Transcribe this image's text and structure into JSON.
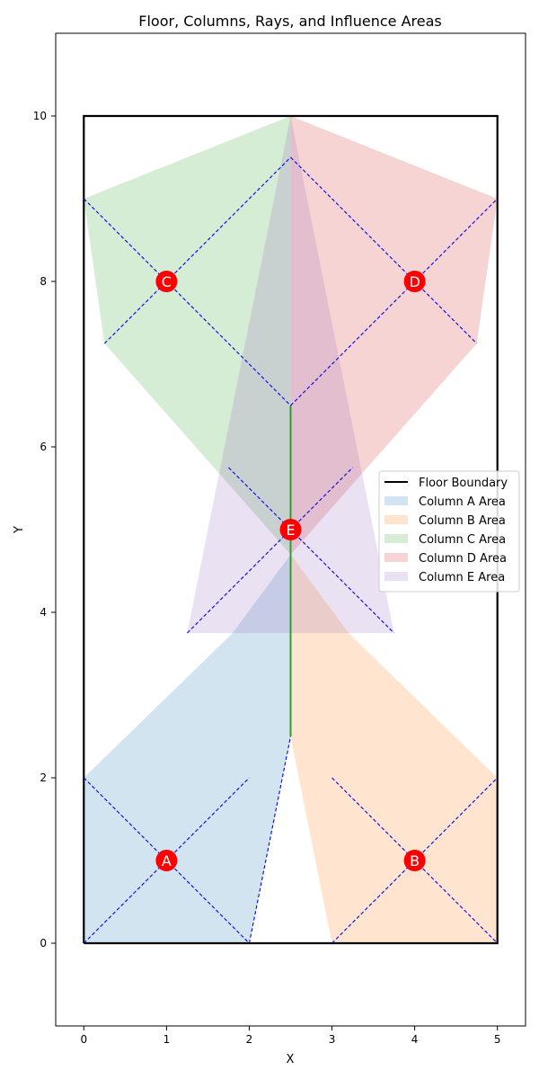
{
  "chart_data": {
    "type": "scatter",
    "title": "Floor, Columns, Rays, and Influence Areas",
    "xlabel": "X",
    "ylabel": "Y",
    "xlim": [
      -0.34,
      5.34
    ],
    "ylim": [
      -1,
      11
    ],
    "xticks": [
      0,
      1,
      2,
      3,
      4,
      5
    ],
    "yticks": [
      0,
      2,
      4,
      6,
      8,
      10
    ],
    "grid": false,
    "legend_position": "right",
    "floor_boundary": {
      "name": "Floor Boundary",
      "color": "#000000",
      "points": [
        [
          0,
          0
        ],
        [
          5,
          0
        ],
        [
          5,
          10
        ],
        [
          0,
          10
        ],
        [
          0,
          0
        ]
      ]
    },
    "columns": [
      {
        "label": "A",
        "x": 1,
        "y": 1
      },
      {
        "label": "B",
        "x": 4,
        "y": 1
      },
      {
        "label": "C",
        "x": 1,
        "y": 8
      },
      {
        "label": "D",
        "x": 4,
        "y": 8
      },
      {
        "label": "E",
        "x": 2.5,
        "y": 5
      }
    ],
    "areas": [
      {
        "name": "Column A Area",
        "color": "#1f77b4",
        "points": [
          [
            0,
            0
          ],
          [
            2,
            0
          ],
          [
            2.5,
            2.5
          ],
          [
            2.5,
            4.7
          ],
          [
            1.8,
            3.75
          ],
          [
            0,
            2
          ]
        ]
      },
      {
        "name": "Column B Area",
        "color": "#ff7f0e",
        "points": [
          [
            3,
            0
          ],
          [
            5,
            0
          ],
          [
            5,
            2
          ],
          [
            3.2,
            3.75
          ],
          [
            2.5,
            4.7
          ],
          [
            2.5,
            2.5
          ]
        ]
      },
      {
        "name": "Column C Area",
        "color": "#2ca02c",
        "points": [
          [
            0,
            9
          ],
          [
            2.5,
            10
          ],
          [
            2.5,
            4.7
          ],
          [
            0.25,
            7.25
          ]
        ]
      },
      {
        "name": "Column D Area",
        "color": "#d62728",
        "points": [
          [
            2.5,
            10
          ],
          [
            5,
            9
          ],
          [
            4.75,
            7.25
          ],
          [
            2.5,
            4.7
          ]
        ]
      },
      {
        "name": "Column E Area",
        "color": "#9467bd",
        "points": [
          [
            2.5,
            10
          ],
          [
            3.75,
            3.75
          ],
          [
            1.25,
            3.75
          ]
        ]
      }
    ],
    "rays": [
      [
        [
          0,
          0
        ],
        [
          2,
          2
        ]
      ],
      [
        [
          0,
          2
        ],
        [
          2,
          0
        ]
      ],
      [
        [
          3,
          0
        ],
        [
          5,
          2
        ]
      ],
      [
        [
          3,
          2
        ],
        [
          5,
          0
        ]
      ],
      [
        [
          0,
          9
        ],
        [
          2.5,
          6.5
        ]
      ],
      [
        [
          0.25,
          7.25
        ],
        [
          2.5,
          9.5
        ]
      ],
      [
        [
          2.5,
          9.5
        ],
        [
          4.75,
          7.25
        ]
      ],
      [
        [
          2.5,
          6.5
        ],
        [
          5,
          9
        ]
      ],
      [
        [
          1.75,
          5.75
        ],
        [
          3.75,
          3.75
        ]
      ],
      [
        [
          1.25,
          3.75
        ],
        [
          3.25,
          5.75
        ]
      ],
      [
        [
          2,
          0
        ],
        [
          2.5,
          2.5
        ]
      ]
    ],
    "divider": {
      "color": "#2ca02c",
      "points": [
        [
          2.5,
          2.5
        ],
        [
          2.5,
          6.5
        ]
      ]
    },
    "legend": [
      {
        "label": "Floor Boundary",
        "kind": "line",
        "color": "#000000"
      },
      {
        "label": "Column A Area",
        "kind": "patch",
        "color": "#1f77b4"
      },
      {
        "label": "Column B Area",
        "kind": "patch",
        "color": "#ff7f0e"
      },
      {
        "label": "Column C Area",
        "kind": "patch",
        "color": "#2ca02c"
      },
      {
        "label": "Column D Area",
        "kind": "patch",
        "color": "#d62728"
      },
      {
        "label": "Column E Area",
        "kind": "patch",
        "color": "#9467bd"
      }
    ]
  }
}
